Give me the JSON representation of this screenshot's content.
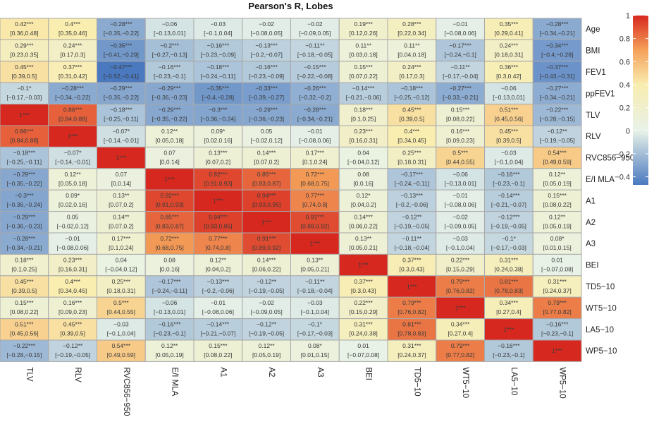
{
  "chart_data": {
    "type": "heatmap",
    "title": "Pearson's  R, Lobes",
    "rows": [
      "Age",
      "BMI",
      "FEV1",
      "ppFEV1",
      "TLV",
      "RLV",
      "RVC856−950",
      "E/I MLA",
      "A1",
      "A2",
      "A3",
      "BEI",
      "TD5−10",
      "WT5−10",
      "LA5−10",
      "WP5−10"
    ],
    "columns": [
      "TLV",
      "RLV",
      "RVC856−950",
      "E/I MLA",
      "A1",
      "A2",
      "A3",
      "BEI",
      "TD5−10",
      "WT5−10",
      "LA5−10",
      "WP5−10"
    ],
    "r_values": [
      [
        0.42,
        0.4,
        -0.28,
        -0.06,
        -0.03,
        -0.02,
        -0.02,
        0.19,
        0.28,
        -0.01,
        0.35,
        -0.28
      ],
      [
        0.29,
        0.24,
        -0.35,
        -0.2,
        -0.16,
        -0.13,
        -0.11,
        0.11,
        0.11,
        -0.17,
        0.24,
        -0.34
      ],
      [
        0.45,
        0.37,
        -0.47,
        -0.16,
        -0.18,
        -0.16,
        -0.15,
        0.15,
        0.24,
        -0.11,
        0.36,
        -0.37
      ],
      [
        -0.1,
        -0.28,
        -0.29,
        -0.29,
        -0.35,
        -0.33,
        -0.26,
        -0.14,
        -0.18,
        -0.27,
        -0.06,
        -0.27
      ],
      [
        1,
        0.86,
        -0.18,
        -0.29,
        -0.3,
        -0.29,
        -0.28,
        0.18,
        0.45,
        0.15,
        0.51,
        -0.22
      ],
      [
        0.86,
        1,
        -0.07,
        0.12,
        0.09,
        0.05,
        -0.01,
        0.23,
        0.4,
        0.16,
        0.45,
        -0.12
      ],
      [
        -0.18,
        -0.07,
        1,
        0.07,
        0.13,
        0.14,
        0.17,
        0.04,
        0.25,
        0.5,
        -0.03,
        0.54
      ],
      [
        -0.29,
        0.12,
        0.07,
        1,
        0.92,
        0.85,
        0.72,
        0.08,
        -0.17,
        -0.06,
        -0.16,
        0.12
      ],
      [
        -0.3,
        0.09,
        0.13,
        0.92,
        1,
        0.94,
        0.77,
        0.12,
        -0.13,
        -0.01,
        -0.14,
        0.15
      ],
      [
        -0.29,
        0.05,
        0.14,
        0.85,
        0.94,
        1,
        0.91,
        0.14,
        -0.12,
        -0.02,
        -0.12,
        0.12
      ],
      [
        -0.28,
        -0.01,
        0.17,
        0.72,
        0.77,
        0.91,
        1,
        0.13,
        -0.11,
        -0.03,
        -0.1,
        0.08
      ],
      [
        0.18,
        0.23,
        0.04,
        0.08,
        0.12,
        0.14,
        0.13,
        1,
        0.37,
        0.22,
        0.31,
        0.01
      ],
      [
        0.45,
        0.4,
        0.25,
        -0.17,
        -0.13,
        -0.12,
        -0.11,
        0.37,
        1,
        0.79,
        0.81,
        0.31
      ],
      [
        0.15,
        0.16,
        0.5,
        -0.06,
        -0.01,
        -0.02,
        -0.03,
        0.22,
        0.79,
        1,
        0.34,
        0.79
      ],
      [
        0.51,
        0.45,
        -0.03,
        -0.16,
        -0.14,
        -0.12,
        -0.1,
        0.31,
        0.81,
        0.34,
        1,
        -0.16
      ],
      [
        -0.22,
        -0.12,
        0.54,
        0.12,
        0.15,
        0.12,
        0.08,
        0.01,
        0.31,
        0.79,
        -0.16,
        1
      ]
    ],
    "labels": [
      [
        "0.42***",
        "0.4***",
        "−0.28***",
        "−0.06",
        "−0.03",
        "−0.02",
        "−0.02",
        "0.19***",
        "0.28***",
        "−0.01",
        "0.35***",
        "−0.28***"
      ],
      [
        "0.29***",
        "0.24***",
        "−0.35***",
        "−0.2***",
        "−0.16***",
        "−0.13***",
        "−0.11**",
        "0.11**",
        "0.11**",
        "−0.17***",
        "0.24***",
        "−0.34***"
      ],
      [
        "0.45***",
        "0.37***",
        "−0.47***",
        "−0.16***",
        "−0.18***",
        "−0.16***",
        "−0.15***",
        "0.15***",
        "0.24***",
        "−0.11**",
        "0.36***",
        "−0.37***"
      ],
      [
        "−0.1*",
        "−0.28***",
        "−0.29***",
        "−0.29***",
        "−0.35***",
        "−0.33***",
        "−0.26***",
        "−0.14***",
        "−0.18***",
        "−0.27***",
        "−0.06",
        "−0.27***"
      ],
      [
        "1***",
        "0.86***",
        "−0.18***",
        "−0.29***",
        "−0.3***",
        "−0.29***",
        "−0.28***",
        "0.18***",
        "0.45***",
        "0.15***",
        "0.51***",
        "−0.22***"
      ],
      [
        "0.86***",
        "1***",
        "−0.07*",
        "0.12**",
        "0.09*",
        "0.05",
        "−0.01",
        "0.23***",
        "0.4***",
        "0.16***",
        "0.45***",
        "−0.12**"
      ],
      [
        "−0.18***",
        "−0.07*",
        "1***",
        "0.07",
        "0.13***",
        "0.14***",
        "0.17***",
        "0.04",
        "0.25***",
        "0.5***",
        "−0.03",
        "0.54***"
      ],
      [
        "−0.29***",
        "0.12**",
        "0.07",
        "1***",
        "0.92***",
        "0.85***",
        "0.72***",
        "0.08",
        "−0.17***",
        "−0.06",
        "−0.16***",
        "0.12**"
      ],
      [
        "−0.3***",
        "0.09*",
        "0.13**",
        "0.92***",
        "1***",
        "0.94***",
        "0.77***",
        "0.12*",
        "−0.13***",
        "−0.01",
        "−0.14***",
        "0.15***"
      ],
      [
        "−0.29***",
        "0.05",
        "0.14**",
        "0.85***",
        "0.94***",
        "1***",
        "0.91***",
        "0.14***",
        "−0.12**",
        "−0.02",
        "−0.12***",
        "0.12**"
      ],
      [
        "−0.28***",
        "−0.01",
        "0.17***",
        "0.72***",
        "0.77***",
        "0.91***",
        "1***",
        "0.13**",
        "−0.11**",
        "−0.03",
        "−0.1*",
        "0.08*"
      ],
      [
        "0.18***",
        "0.23***",
        "0.04",
        "0.08",
        "0.12**",
        "0.14***",
        "0.13**",
        "1***",
        "0.37***",
        "0.22***",
        "0.31***",
        "0.01"
      ],
      [
        "0.45***",
        "0.4***",
        "0.25***",
        "−0.17***",
        "−0.13***",
        "−0.12**",
        "−0.11**",
        "0.37***",
        "1***",
        "0.79***",
        "0.81***",
        "0.31***"
      ],
      [
        "0.15***",
        "0.16***",
        "0.5***",
        "−0.06",
        "−0.01",
        "−0.02",
        "−0.03",
        "0.22***",
        "0.79***",
        "1***",
        "0.34***",
        "0.79***"
      ],
      [
        "0.51***",
        "0.45***",
        "−0.03",
        "−0.16***",
        "−0.14***",
        "−0.12**",
        "−0.1*",
        "0.31***",
        "0.81***",
        "0.34***",
        "1***",
        "−0.16***"
      ],
      [
        "−0.22***",
        "−0.12**",
        "0.54***",
        "0.12**",
        "0.15***",
        "0.12**",
        "0.08*",
        "0.01",
        "0.31***",
        "0.79***",
        "−0.16***",
        "1***"
      ]
    ],
    "ci": [
      [
        "[0.36,0.48]",
        "[0.35,0.46]",
        "[−0.35,−0.22]",
        "[−0.13,0.01]",
        "[−0.1,0.04]",
        "[−0.08,0.05]",
        "[−0.09,0.05]",
        "[0.12,0.26]",
        "[0.22,0.34]",
        "[−0.08,0.06]",
        "[0.29,0.41]",
        "[−0.34,−0.21]"
      ],
      [
        "[0.23,0.35]",
        "[0.17,0.3]",
        "[−0.41,−0.29]",
        "[−0.27,−0.13]",
        "[−0.23,−0.09]",
        "[−0.2,−0.07]",
        "[−0.18,−0.05]",
        "[0.03,0.18]",
        "[0.04,0.18]",
        "[−0.24,−0.1]",
        "[0.18,0.31]",
        "[−0.4,−0.28]"
      ],
      [
        "[0.39,0.5]",
        "[0.31,0.42]",
        "[−0.52,−0.41]",
        "[−0.23,−0.1]",
        "[−0.24,−0.11]",
        "[−0.23,−0.09]",
        "[−0.22,−0.08]",
        "[0.07,0.22]",
        "[0.17,0.3]",
        "[−0.17,−0.04]",
        "[0.3,0.42]",
        "[−0.43,−0.31]"
      ],
      [
        "[−0.17,−0.03]",
        "[−0.34,−0.22]",
        "[−0.35,−0.22]",
        "[−0.36,−0.23]",
        "[−0.4,−0.28]",
        "[−0.39,−0.27]",
        "[−0.32,−0.2]",
        "[−0.21,−0.06]",
        "[−0.25,−0.12]",
        "[−0.33,−0.21]",
        "[−0.13,0.01]",
        "[−0.34,−0.21]"
      ],
      [
        "",
        "[0.84,0.88]",
        "[−0.25,−0.11]",
        "[−0.35,−0.22]",
        "[−0.36,−0.24]",
        "[−0.36,−0.23]",
        "[−0.34,−0.21]",
        "[0.1,0.25]",
        "[0.39,0.5]",
        "[0.08,0.22]",
        "[0.45,0.56]",
        "[−0.28,−0.15]"
      ],
      [
        "[0.84,0.88]",
        "",
        "[−0.14,−0.01]",
        "[0.05,0.18]",
        "[0.02,0.16]",
        "[−0.02,0.12]",
        "[−0.08,0.06]",
        "[0.16,0.31]",
        "[0.34,0.45]",
        "[0.09,0.23]",
        "[0.39,0.5]",
        "[−0.19,−0.05]"
      ],
      [
        "[−0.25,−0.11]",
        "[−0.14,−0.01]",
        "",
        "[0,0.14]",
        "[0.07,0.2]",
        "[0.07,0.2]",
        "[0.1,0.24]",
        "[−0.04,0.12]",
        "[0.18,0.31]",
        "[0.44,0.55]",
        "[−0.1,0.04]",
        "[0.49,0.59]"
      ],
      [
        "[−0.35,−0.22]",
        "[0.05,0.18]",
        "[0,0.14]",
        "",
        "[0.91,0.93]",
        "[0.83,0.87]",
        "[0.68,0.75]",
        "[0,0.16]",
        "[−0.24,−0.11]",
        "[−0.13,0.01]",
        "[−0.23,−0.1]",
        "[0.05,0.19]"
      ],
      [
        "[−0.36,−0.24]",
        "[0.02,0.16]",
        "[0.07,0.2]",
        "[0.91,0.93]",
        "",
        "[0.93,0.95]",
        "[0.74,0.8]",
        "[0.04,0.2]",
        "[−0.2,−0.06]",
        "[−0.08,0.06]",
        "[−0.21,−0.07]",
        "[0.08,0.22]"
      ],
      [
        "[−0.36,−0.23]",
        "[−0.02,0.12]",
        "[0.07,0.2]",
        "[0.83,0.87]",
        "[0.93,0.95]",
        "",
        "[0.89,0.92]",
        "[0.06,0.22]",
        "[−0.19,−0.05]",
        "[−0.09,0.05]",
        "[−0.19,−0.05]",
        "[0.05,0.19]"
      ],
      [
        "[−0.34,−0.21]",
        "[−0.08,0.06]",
        "[0.1,0.24]",
        "[0.68,0.75]",
        "[0.74,0.8]",
        "[0.89,0.92]",
        "",
        "[0.05,0.21]",
        "[−0.18,−0.04]",
        "[−0.1,0.04]",
        "[−0.17,−0.03]",
        "[0.01,0.15]"
      ],
      [
        "[0.1,0.25]",
        "[0.16,0.31]",
        "[−0.04,0.12]",
        "[0,0.16]",
        "[0.04,0.2]",
        "[0.06,0.22]",
        "[0.05,0.21]",
        "",
        "[0.3,0.43]",
        "[0.15,0.29]",
        "[0.24,0.38]",
        "[−0.07,0.08]"
      ],
      [
        "[0.39,0.5]",
        "[0.34,0.45]",
        "[0.18,0.31]",
        "[−0.24,−0.11]",
        "[−0.2,−0.06]",
        "[−0.19,−0.05]",
        "[−0.18,−0.04]",
        "[0.3,0.43]",
        "",
        "[0.76,0.82]",
        "[0.78,0.83]",
        "[0.24,0.37]"
      ],
      [
        "[0.08,0.22]",
        "[0.09,0.23]",
        "[0.44,0.55]",
        "[−0.13,0.01]",
        "[−0.08,0.06]",
        "[−0.09,0.05]",
        "[−0.1,0.04]",
        "[0.15,0.29]",
        "[0.76,0.82]",
        "",
        "[0.27,0.4]",
        "[0.77,0.82]"
      ],
      [
        "[0.45,0.56]",
        "[0.39,0.5]",
        "[−0.1,0.04]",
        "[−0.23,−0.1]",
        "[−0.21,−0.07]",
        "[−0.19,−0.05]",
        "[−0.17,−0.03]",
        "[0.24,0.38]",
        "[0.78,0.83]",
        "[0.27,0.4]",
        "",
        "[−0.23,−0.1]"
      ],
      [
        "[−0.28,−0.15]",
        "[−0.19,−0.05]",
        "[0.49,0.59]",
        "[0.05,0.19]",
        "[0.08,0.22]",
        "[0.05,0.19]",
        "[0.01,0.15]",
        "[−0.07,0.08]",
        "[0.24,0.37]",
        "[0.77,0.82]",
        "[−0.23,−0.1]",
        ""
      ]
    ],
    "legend": {
      "ticks": [
        1,
        0.8,
        0.6,
        0.4,
        0.2,
        0,
        -0.2,
        -0.4
      ],
      "tick_labels": [
        "1",
        "0.8",
        "0.6",
        "0.4",
        "0.2",
        "0",
        "−0.2",
        "−0.4"
      ],
      "range": [
        -0.47,
        1
      ],
      "placement": "right"
    },
    "colors": {
      "low": "#4a79c0",
      "mid": "#e8f2e8",
      "high1": "#f9edb0",
      "high2": "#f5a15a",
      "max": "#d7281f",
      "grid": "#a8a8a8"
    }
  }
}
